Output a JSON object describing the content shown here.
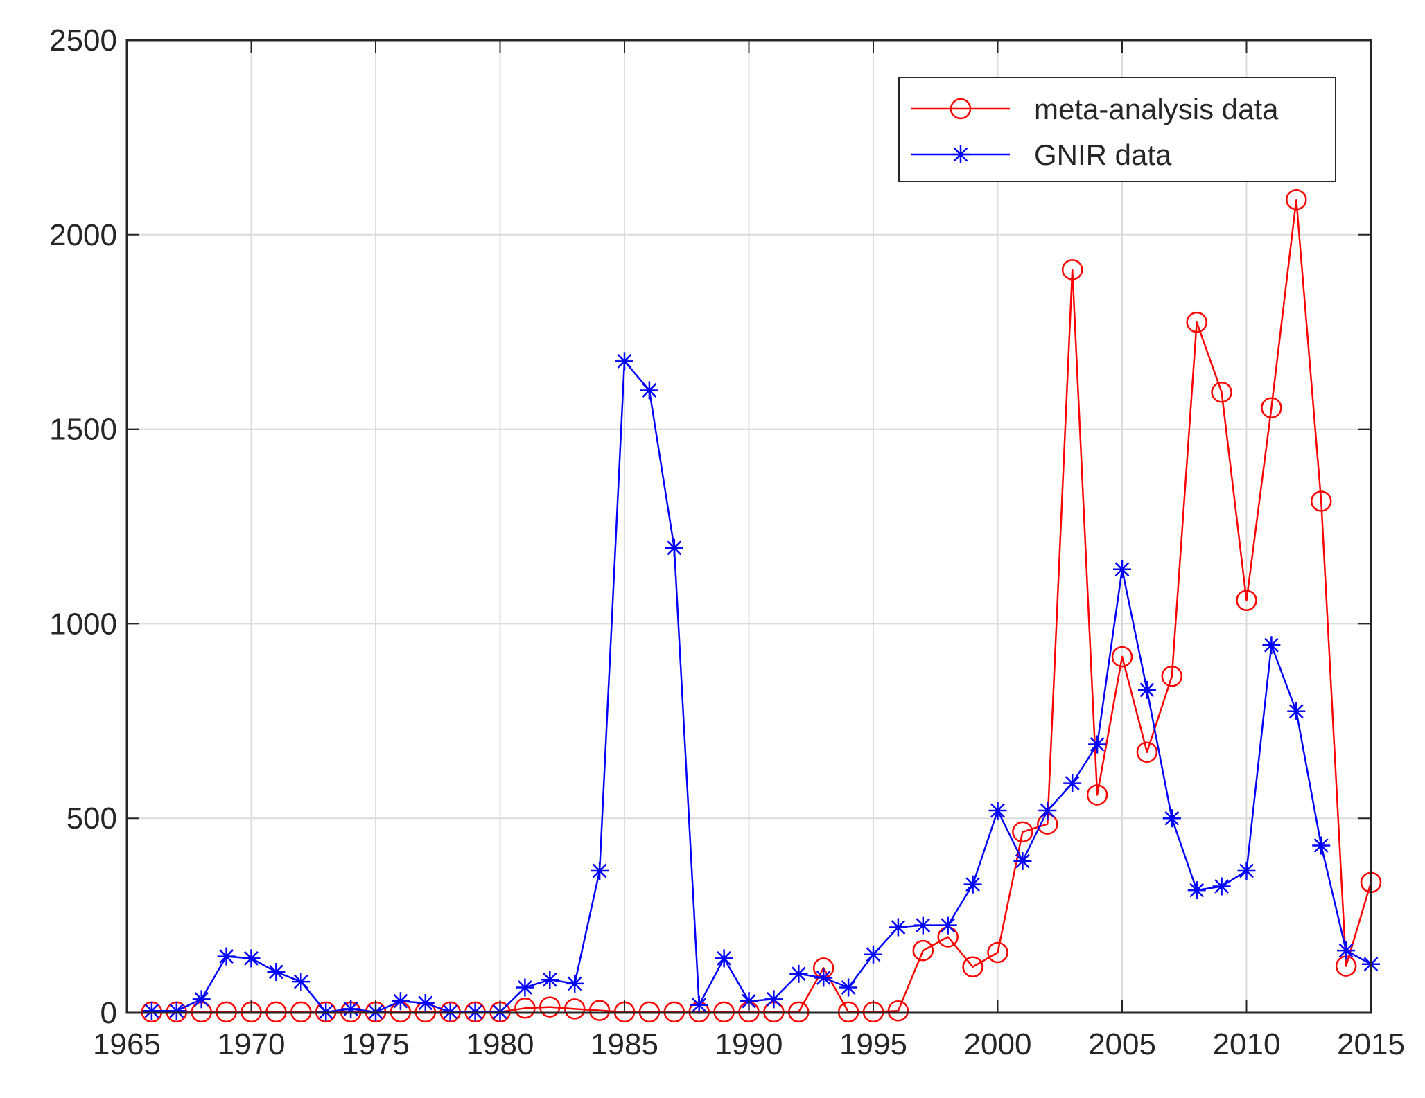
{
  "chart_data": {
    "type": "line",
    "title": "",
    "xlabel": "",
    "ylabel": "",
    "xlim": [
      1965,
      2015
    ],
    "ylim": [
      0,
      2500
    ],
    "xticks": [
      "1965",
      "1970",
      "1975",
      "1980",
      "1985",
      "1990",
      "1995",
      "2000",
      "2005",
      "2010",
      "2015"
    ],
    "yticks": [
      "0",
      "500",
      "1000",
      "1500",
      "2000",
      "2500"
    ],
    "grid": true,
    "legend_position": "top-right",
    "series": [
      {
        "name": "meta-analysis data",
        "color": "#ff0000",
        "marker": "circle",
        "points": [
          [
            1966,
            2
          ],
          [
            1967,
            2
          ],
          [
            1968,
            2
          ],
          [
            1969,
            2
          ],
          [
            1970,
            2
          ],
          [
            1971,
            2
          ],
          [
            1972,
            2
          ],
          [
            1973,
            2
          ],
          [
            1974,
            2
          ],
          [
            1975,
            2
          ],
          [
            1976,
            2
          ],
          [
            1977,
            2
          ],
          [
            1978,
            2
          ],
          [
            1979,
            2
          ],
          [
            1980,
            2
          ],
          [
            1981,
            12
          ],
          [
            1982,
            15
          ],
          [
            1983,
            10
          ],
          [
            1984,
            6
          ],
          [
            1985,
            2
          ],
          [
            1986,
            2
          ],
          [
            1987,
            2
          ],
          [
            1988,
            2
          ],
          [
            1989,
            2
          ],
          [
            1990,
            2
          ],
          [
            1991,
            2
          ],
          [
            1992,
            2
          ],
          [
            1993,
            115
          ],
          [
            1994,
            2
          ],
          [
            1995,
            2
          ],
          [
            1996,
            5
          ],
          [
            1997,
            160
          ],
          [
            1998,
            195
          ],
          [
            1999,
            118
          ],
          [
            2000,
            155
          ],
          [
            2001,
            465
          ],
          [
            2002,
            485
          ],
          [
            2003,
            1910
          ],
          [
            2004,
            560
          ],
          [
            2005,
            915
          ],
          [
            2006,
            670
          ],
          [
            2007,
            865
          ],
          [
            2008,
            1775
          ],
          [
            2009,
            1595
          ],
          [
            2010,
            1060
          ],
          [
            2011,
            1555
          ],
          [
            2012,
            2090
          ],
          [
            2013,
            1315
          ],
          [
            2014,
            120
          ],
          [
            2015,
            335
          ]
        ]
      },
      {
        "name": "GNIR data",
        "color": "#0000ff",
        "marker": "asterisk",
        "points": [
          [
            1966,
            5
          ],
          [
            1967,
            5
          ],
          [
            1968,
            35
          ],
          [
            1969,
            145
          ],
          [
            1970,
            140
          ],
          [
            1971,
            105
          ],
          [
            1972,
            80
          ],
          [
            1973,
            2
          ],
          [
            1974,
            10
          ],
          [
            1975,
            2
          ],
          [
            1976,
            30
          ],
          [
            1977,
            25
          ],
          [
            1978,
            2
          ],
          [
            1979,
            2
          ],
          [
            1980,
            2
          ],
          [
            1981,
            65
          ],
          [
            1982,
            85
          ],
          [
            1983,
            75
          ],
          [
            1984,
            365
          ],
          [
            1985,
            1675
          ],
          [
            1986,
            1600
          ],
          [
            1987,
            1195
          ],
          [
            1988,
            20
          ],
          [
            1989,
            140
          ],
          [
            1990,
            30
          ],
          [
            1991,
            35
          ],
          [
            1992,
            100
          ],
          [
            1993,
            90
          ],
          [
            1994,
            65
          ],
          [
            1995,
            150
          ],
          [
            1996,
            220
          ],
          [
            1997,
            225
          ],
          [
            1998,
            225
          ],
          [
            1999,
            330
          ],
          [
            2000,
            520
          ],
          [
            2001,
            390
          ],
          [
            2002,
            520
          ],
          [
            2003,
            590
          ],
          [
            2004,
            690
          ],
          [
            2005,
            1140
          ],
          [
            2006,
            830
          ],
          [
            2007,
            500
          ],
          [
            2008,
            315
          ],
          [
            2009,
            325
          ],
          [
            2010,
            365
          ],
          [
            2011,
            945
          ],
          [
            2012,
            775
          ],
          [
            2013,
            430
          ],
          [
            2014,
            160
          ],
          [
            2015,
            125
          ]
        ]
      }
    ]
  }
}
